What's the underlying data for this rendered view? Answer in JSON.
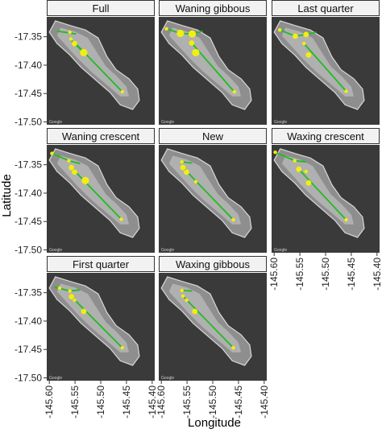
{
  "chart_data": {
    "type": "scatter",
    "xlabel": "Longitude",
    "ylabel": "Latitude",
    "xlim": [
      -145.605,
      -145.395
    ],
    "ylim": [
      -17.505,
      -17.315
    ],
    "xticks": [
      -145.6,
      -145.55,
      -145.5,
      -145.45,
      -145.4
    ],
    "xtick_labels": [
      "-145.60",
      "-145.55",
      "-145.50",
      "-145.45",
      "-145.40"
    ],
    "yticks": [
      -17.35,
      -17.4,
      -17.45,
      -17.5
    ],
    "ytick_labels": [
      "-17.35",
      "-17.40",
      "-17.45",
      "-17.50"
    ],
    "colors": {
      "strip": "#f2f2f2",
      "sea": "#3a3a3a",
      "land": "#8e8e8e",
      "lagoon": "#b4b4b4",
      "track": "#22bb22",
      "point": "#f2ee10"
    },
    "map_credit": "Google",
    "panels": [
      {
        "title": "Full",
        "points": [
          {
            "x": -145.56,
            "y": -17.342,
            "size": 1
          },
          {
            "x": -145.558,
            "y": -17.354,
            "size": 1
          },
          {
            "x": -145.551,
            "y": -17.362,
            "size": 2
          },
          {
            "x": -145.533,
            "y": -17.378,
            "size": 3
          },
          {
            "x": -145.458,
            "y": -17.447,
            "size": 1
          }
        ],
        "tracks": [
          {
            "x": [
              -145.585,
              -145.548
            ],
            "y": [
              -17.34,
              -17.345
            ]
          },
          {
            "x": [
              -145.551,
              -145.458
            ],
            "y": [
              -17.36,
              -17.447
            ]
          },
          {
            "x": [
              -145.56,
              -145.533
            ],
            "y": [
              -17.354,
              -17.378
            ]
          }
        ]
      },
      {
        "title": "Waning gibbous",
        "points": [
          {
            "x": -145.59,
            "y": -17.336,
            "size": 1
          },
          {
            "x": -145.563,
            "y": -17.344,
            "size": 3
          },
          {
            "x": -145.54,
            "y": -17.345,
            "size": 3
          },
          {
            "x": -145.541,
            "y": -17.361,
            "size": 2
          },
          {
            "x": -145.533,
            "y": -17.378,
            "size": 3
          },
          {
            "x": -145.458,
            "y": -17.447,
            "size": 1
          }
        ],
        "tracks": [
          {
            "x": [
              -145.59,
              -145.563,
              -145.54,
              -145.52
            ],
            "y": [
              -17.336,
              -17.344,
              -17.345,
              -17.34
            ]
          },
          {
            "x": [
              -145.541,
              -145.458
            ],
            "y": [
              -17.361,
              -17.447
            ]
          }
        ]
      },
      {
        "title": "Last quarter",
        "points": [
          {
            "x": -145.589,
            "y": -17.338,
            "size": 1
          },
          {
            "x": -145.559,
            "y": -17.349,
            "size": 2
          },
          {
            "x": -145.538,
            "y": -17.346,
            "size": 2
          },
          {
            "x": -145.542,
            "y": -17.362,
            "size": 1
          },
          {
            "x": -145.533,
            "y": -17.382,
            "size": 2
          },
          {
            "x": -145.46,
            "y": -17.446,
            "size": 1
          }
        ],
        "tracks": [
          {
            "x": [
              -145.589,
              -145.559,
              -145.538,
              -145.518
            ],
            "y": [
              -17.338,
              -17.349,
              -17.346,
              -17.342
            ]
          },
          {
            "x": [
              -145.542,
              -145.46
            ],
            "y": [
              -17.362,
              -17.446
            ]
          }
        ]
      },
      {
        "title": "Waning crescent",
        "points": [
          {
            "x": -145.595,
            "y": -17.33,
            "size": 1
          },
          {
            "x": -145.562,
            "y": -17.343,
            "size": 1
          },
          {
            "x": -145.557,
            "y": -17.355,
            "size": 2
          },
          {
            "x": -145.551,
            "y": -17.363,
            "size": 2
          },
          {
            "x": -145.53,
            "y": -17.378,
            "size": 3
          },
          {
            "x": -145.46,
            "y": -17.446,
            "size": 1
          }
        ],
        "tracks": [
          {
            "x": [
              -145.595,
              -145.562,
              -145.54
            ],
            "y": [
              -17.33,
              -17.343,
              -17.348
            ]
          },
          {
            "x": [
              -145.557,
              -145.46
            ],
            "y": [
              -17.355,
              -17.446
            ]
          }
        ]
      },
      {
        "title": "New",
        "points": [
          {
            "x": -145.56,
            "y": -17.345,
            "size": 1
          },
          {
            "x": -145.558,
            "y": -17.355,
            "size": 2
          },
          {
            "x": -145.551,
            "y": -17.363,
            "size": 2
          },
          {
            "x": -145.533,
            "y": -17.38,
            "size": 1
          },
          {
            "x": -145.46,
            "y": -17.447,
            "size": 1
          }
        ],
        "tracks": [
          {
            "x": [
              -145.56,
              -145.54
            ],
            "y": [
              -17.345,
              -17.347
            ]
          },
          {
            "x": [
              -145.558,
              -145.46
            ],
            "y": [
              -17.355,
              -17.447
            ]
          }
        ]
      },
      {
        "title": "Waxing crescent",
        "points": [
          {
            "x": -145.598,
            "y": -17.328,
            "size": 1
          },
          {
            "x": -145.56,
            "y": -17.343,
            "size": 1
          },
          {
            "x": -145.552,
            "y": -17.358,
            "size": 2
          },
          {
            "x": -145.538,
            "y": -17.362,
            "size": 1
          },
          {
            "x": -145.533,
            "y": -17.382,
            "size": 2
          },
          {
            "x": -145.46,
            "y": -17.447,
            "size": 1
          }
        ],
        "tracks": [
          {
            "x": [
              -145.598,
              -145.56,
              -145.538
            ],
            "y": [
              -17.328,
              -17.343,
              -17.345
            ]
          },
          {
            "x": [
              -145.552,
              -145.46
            ],
            "y": [
              -17.358,
              -17.447
            ]
          }
        ]
      },
      {
        "title": "First quarter",
        "points": [
          {
            "x": -145.58,
            "y": -17.342,
            "size": 1
          },
          {
            "x": -145.56,
            "y": -17.347,
            "size": 1
          },
          {
            "x": -145.557,
            "y": -17.357,
            "size": 2
          },
          {
            "x": -145.551,
            "y": -17.363,
            "size": 1
          },
          {
            "x": -145.533,
            "y": -17.383,
            "size": 2
          },
          {
            "x": -145.458,
            "y": -17.447,
            "size": 1
          }
        ],
        "tracks": [
          {
            "x": [
              -145.59,
              -145.56,
              -145.54
            ],
            "y": [
              -17.34,
              -17.347,
              -17.345
            ]
          },
          {
            "x": [
              -145.557,
              -145.458
            ],
            "y": [
              -17.357,
              -17.447
            ]
          }
        ]
      },
      {
        "title": "Waxing gibbous",
        "points": [
          {
            "x": -145.56,
            "y": -17.346,
            "size": 1
          },
          {
            "x": -145.558,
            "y": -17.356,
            "size": 1
          },
          {
            "x": -145.551,
            "y": -17.363,
            "size": 1
          },
          {
            "x": -145.535,
            "y": -17.383,
            "size": 2
          },
          {
            "x": -145.46,
            "y": -17.447,
            "size": 1
          }
        ],
        "tracks": [
          {
            "x": [
              -145.56,
              -145.54
            ],
            "y": [
              -17.346,
              -17.347
            ]
          },
          {
            "x": [
              -145.558,
              -145.46
            ],
            "y": [
              -17.356,
              -17.447
            ]
          }
        ]
      }
    ]
  }
}
